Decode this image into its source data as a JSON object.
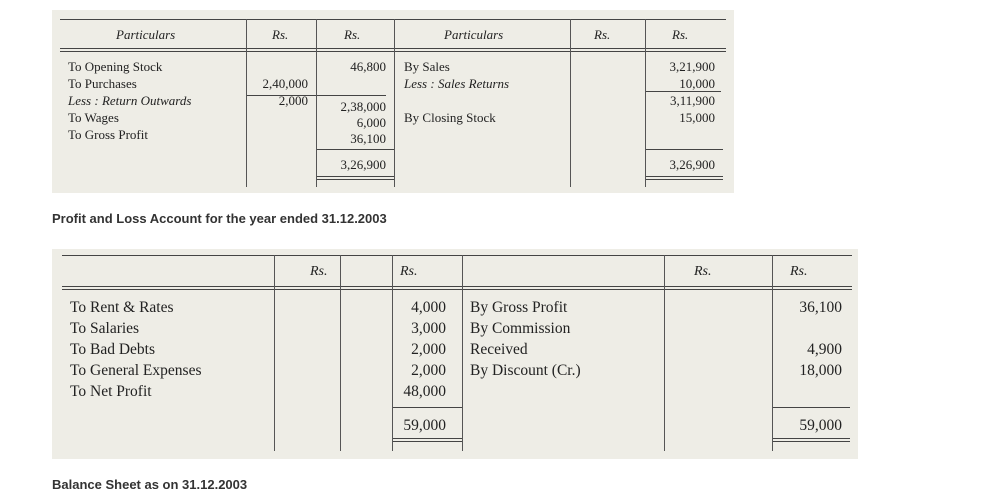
{
  "trading_table": {
    "headers": {
      "particulars_left": "Particulars",
      "rs1": "Rs.",
      "rs2": "Rs.",
      "particulars_right": "Particulars",
      "rs3": "Rs.",
      "rs4": "Rs."
    },
    "left_items": [
      "To Opening Stock",
      "To Purchases",
      "Less : Return Outwards",
      "To Wages",
      "To Gross Profit"
    ],
    "left_inner": [
      "2,40,000",
      "2,000"
    ],
    "left_amounts": [
      "46,800",
      "",
      "2,38,000",
      "6,000",
      "36,100"
    ],
    "left_total": "3,26,900",
    "right_items": [
      "By Sales",
      "Less : Sales Returns",
      "",
      "By Closing Stock"
    ],
    "right_amounts": [
      "3,21,900",
      "10,000",
      "3,11,900",
      "15,000"
    ],
    "right_total": "3,26,900"
  },
  "pl_caption": "Profit and Loss Account for the year ended 31.12.2003",
  "pl_table": {
    "headers": {
      "rs1": "Rs.",
      "rs2": "Rs.",
      "rs3": "Rs.",
      "rs4": "Rs."
    },
    "left_items": [
      "To Rent & Rates",
      "To Salaries",
      "To Bad Debts",
      "To General Expenses",
      "To Net Profit"
    ],
    "left_amounts": [
      "4,000",
      "3,000",
      "2,000",
      "2,000",
      "48,000"
    ],
    "left_total": "59,000",
    "right_items": [
      "By Gross Profit",
      "By Commission",
      "Received",
      "By Discount (Cr.)"
    ],
    "right_amounts": [
      "36,100",
      "",
      "4,900",
      "18,000"
    ],
    "right_total": "59,000"
  },
  "bs_caption": "Balance Sheet as on 31.12.2003"
}
